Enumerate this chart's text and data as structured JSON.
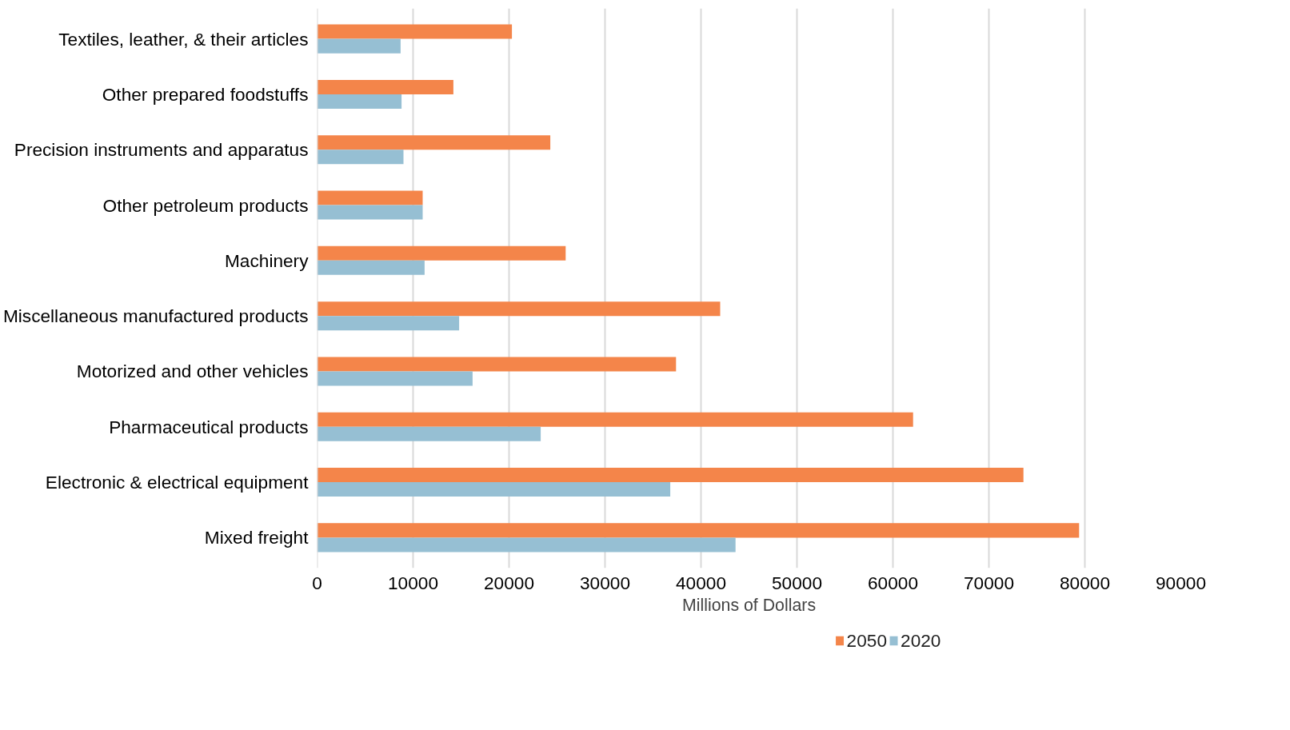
{
  "chart_data": {
    "type": "bar",
    "orientation": "horizontal",
    "xlabel": "Millions of Dollars",
    "categories": [
      "Textiles, leather, & their articles",
      "Other prepared foodstuffs",
      "Precision instruments and apparatus",
      "Other petroleum products",
      "Machinery",
      "Miscellaneous manufactured products",
      "Motorized and other vehicles",
      "Pharmaceutical products",
      "Electronic & electrical equipment",
      "Mixed freight"
    ],
    "series": [
      {
        "name": "2050",
        "color": "#f4854a",
        "values": [
          20300,
          14200,
          24300,
          11000,
          25900,
          42000,
          37400,
          62100,
          73600,
          79400
        ]
      },
      {
        "name": "2020",
        "color": "#96bfd3",
        "values": [
          8700,
          8800,
          9000,
          11000,
          11200,
          14800,
          16200,
          23300,
          36800,
          43600
        ]
      }
    ],
    "xlim": [
      0,
      90000
    ],
    "xticks": [
      0,
      10000,
      20000,
      30000,
      40000,
      50000,
      60000,
      70000,
      80000,
      90000
    ],
    "grid": "x",
    "legend": "bottom"
  }
}
